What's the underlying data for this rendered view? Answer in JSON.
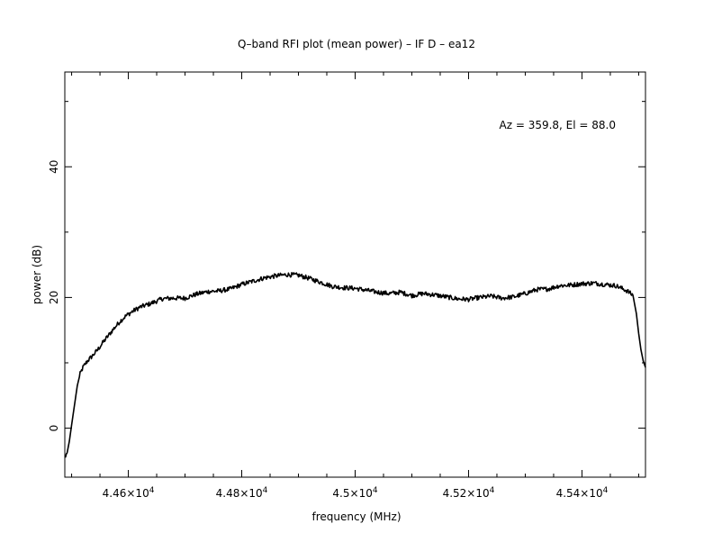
{
  "chart_data": {
    "type": "line",
    "title": "Q–band RFI plot (mean power) – IF D – ea12",
    "xlabel": "frequency (MHz)",
    "ylabel": "power (dB)",
    "annotation": "Az = 359.8, El = 88.0",
    "xlim": [
      44488,
      45512
    ],
    "ylim": [
      -7.5,
      54.5
    ],
    "x_ticks": [
      {
        "value": 44600,
        "mantissa": "4.46",
        "exp": "4"
      },
      {
        "value": 44800,
        "mantissa": "4.48",
        "exp": "4"
      },
      {
        "value": 45000,
        "mantissa": "4.5",
        "exp": "4"
      },
      {
        "value": 45200,
        "mantissa": "4.52",
        "exp": "4"
      },
      {
        "value": 45400,
        "mantissa": "4.54",
        "exp": "4"
      }
    ],
    "x_minor_step": 50,
    "y_ticks": [
      {
        "value": 0,
        "label": "0"
      },
      {
        "value": 20,
        "label": "20"
      },
      {
        "value": 40,
        "label": "40"
      }
    ],
    "y_minor_step": 10,
    "line_color": "#000000",
    "series": [
      {
        "x": [
          44488,
          44492,
          44496,
          44500,
          44505,
          44510,
          44515,
          44520,
          44528,
          44536,
          44546,
          44556,
          44566,
          44576,
          44586,
          44596,
          44608,
          44620,
          44640,
          44660,
          44680,
          44700,
          44720,
          44740,
          44760,
          44780,
          44800,
          44820,
          44840,
          44860,
          44880,
          44900,
          44920,
          44940,
          44960,
          44980,
          45000,
          45020,
          45040,
          45060,
          45080,
          45100,
          45120,
          45140,
          45160,
          45180,
          45200,
          45220,
          45240,
          45260,
          45280,
          45300,
          45320,
          45340,
          45360,
          45380,
          45400,
          45420,
          45440,
          45460,
          45480,
          45490,
          45496,
          45500,
          45504,
          45508,
          45512
        ],
        "y": [
          -4.5,
          -3.8,
          -2.0,
          0.5,
          3.5,
          6.5,
          8.3,
          9.3,
          10.3,
          11.0,
          12.0,
          13.2,
          14.3,
          15.4,
          16.4,
          17.2,
          17.9,
          18.5,
          19.1,
          19.8,
          19.9,
          19.9,
          20.5,
          20.9,
          21.0,
          21.3,
          22.0,
          22.5,
          23.0,
          23.3,
          23.5,
          23.4,
          22.9,
          22.3,
          21.7,
          21.5,
          21.4,
          21.1,
          20.8,
          20.6,
          20.8,
          20.3,
          20.6,
          20.4,
          20.1,
          19.8,
          19.7,
          20.0,
          20.2,
          19.9,
          20.1,
          20.6,
          21.2,
          21.3,
          21.8,
          21.9,
          22.1,
          22.2,
          22.0,
          21.8,
          21.0,
          20.3,
          17.5,
          14.5,
          12.0,
          10.3,
          9.3
        ]
      }
    ]
  }
}
